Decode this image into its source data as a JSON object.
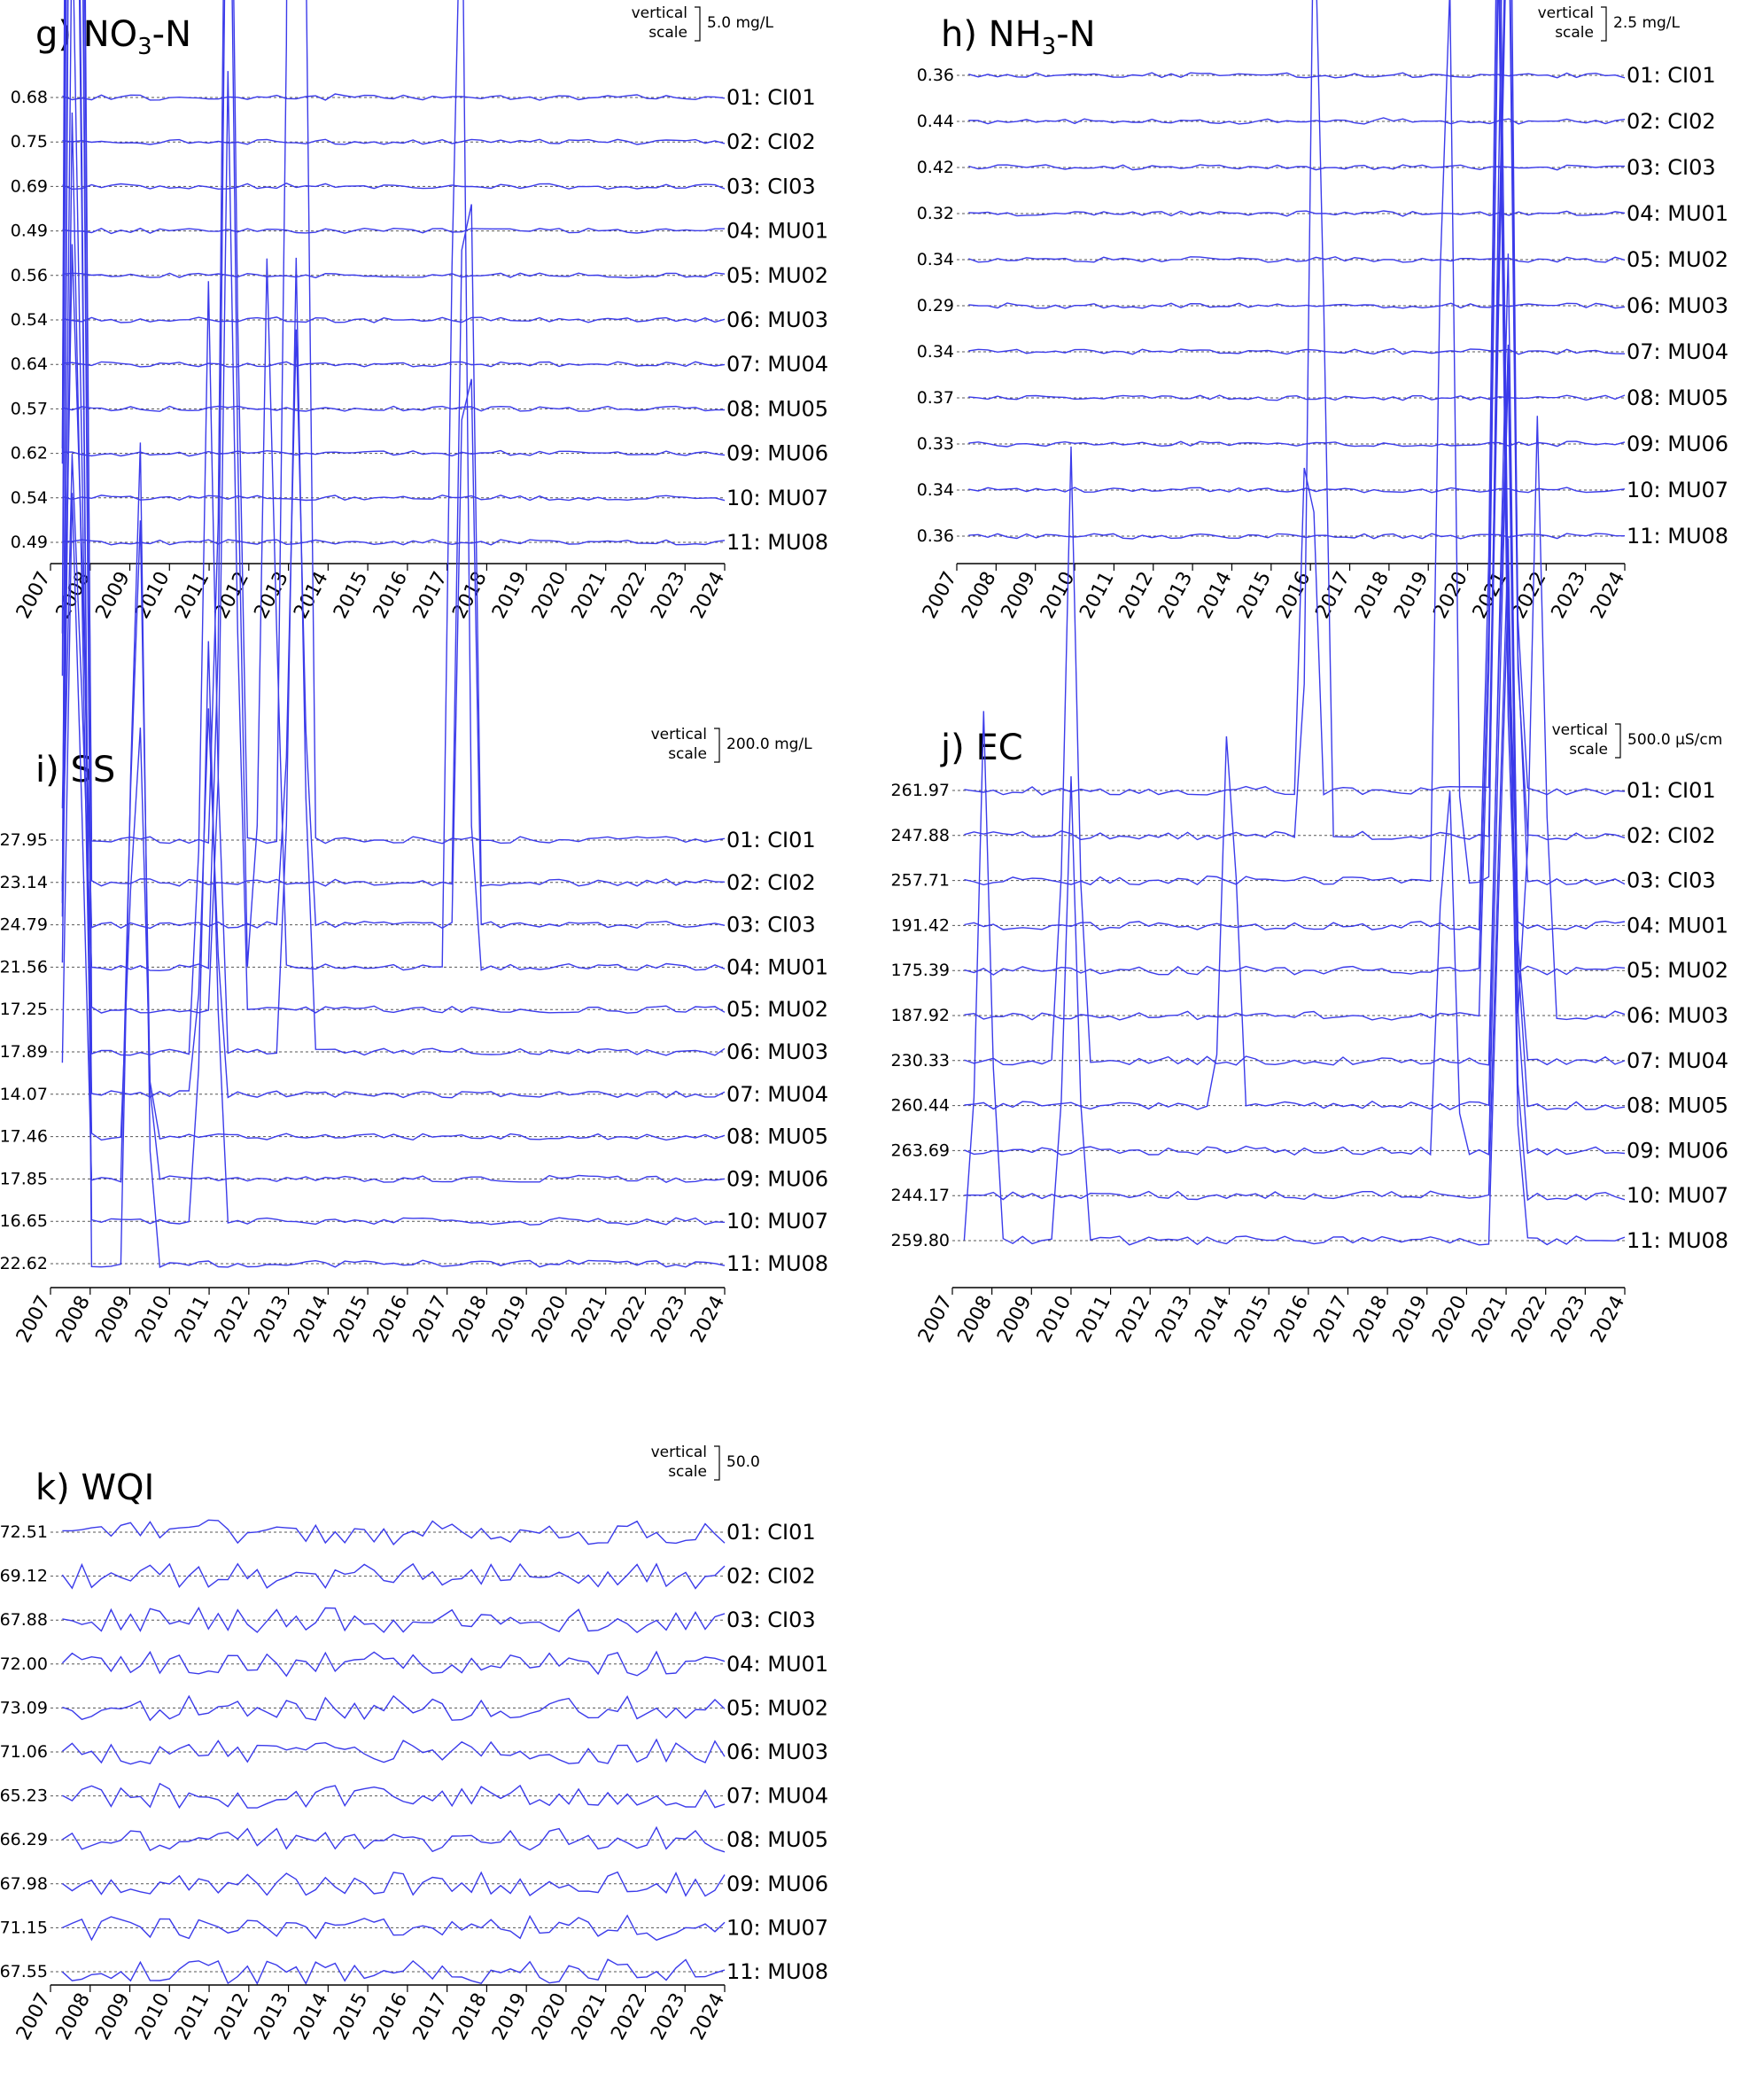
{
  "series_color": "#3b3bea",
  "baseline_color": "#555555",
  "chart_data": [
    {
      "type": "line",
      "panel": "g",
      "title": {
        "prefix": "g)",
        "main": "NO",
        "sub": "3",
        "suffix": "-N"
      },
      "scale_label": "vertical\nscale",
      "scale_value": "5.0",
      "scale_unit": "mg/L",
      "x_ticks": [
        "2007",
        "2008",
        "2009",
        "2010",
        "2011",
        "2012",
        "2013",
        "2014",
        "2015",
        "2016",
        "2017",
        "2018",
        "2019",
        "2020",
        "2021",
        "2022",
        "2023",
        "2024"
      ],
      "xlim": [
        2007,
        2024
      ],
      "series": [
        {
          "name": "01: CI01",
          "mean": "0.68",
          "spikes": [
            [
              2013.2,
              0.4
            ],
            [
              2014.3,
              2.0
            ],
            [
              2015.5,
              0.2
            ]
          ]
        },
        {
          "name": "02: CI02",
          "mean": "0.75",
          "spikes": [
            [
              2013.0,
              1.9
            ],
            [
              2013.6,
              0.3
            ],
            [
              2016.0,
              0.3
            ]
          ]
        },
        {
          "name": "03: CI03",
          "mean": "0.69",
          "spikes": [
            [
              2013.0,
              1.5
            ],
            [
              2013.8,
              0.4
            ],
            [
              2017.5,
              0.3
            ]
          ]
        },
        {
          "name": "04: MU01",
          "mean": "0.49",
          "spikes": [
            [
              2012.8,
              0.5
            ],
            [
              2015.8,
              0.2
            ]
          ]
        },
        {
          "name": "05: MU02",
          "mean": "0.56",
          "spikes": [
            [
              2009.0,
              0.3
            ],
            [
              2012.8,
              0.4
            ],
            [
              2015.5,
              0.3
            ]
          ]
        },
        {
          "name": "06: MU03",
          "mean": "0.54",
          "spikes": [
            [
              2012.8,
              0.5
            ],
            [
              2015.5,
              0.3
            ],
            [
              2016.5,
              0.4
            ]
          ]
        },
        {
          "name": "07: MU04",
          "mean": "0.64",
          "spikes": [
            [
              2012.8,
              0.4
            ],
            [
              2016.3,
              0.4
            ],
            [
              2019.5,
              0.3
            ]
          ]
        },
        {
          "name": "08: MU05",
          "mean": "0.57",
          "spikes": [
            [
              2012.8,
              0.4
            ],
            [
              2015.8,
              0.3
            ],
            [
              2018.0,
              0.3
            ]
          ]
        },
        {
          "name": "09: MU06",
          "mean": "0.62",
          "spikes": [
            [
              2012.8,
              0.4
            ],
            [
              2016.2,
              0.3
            ],
            [
              2018.2,
              0.4
            ]
          ]
        },
        {
          "name": "10: MU07",
          "mean": "0.54",
          "spikes": [
            [
              2013.0,
              0.3
            ],
            [
              2015.7,
              0.3
            ],
            [
              2018.0,
              0.3
            ]
          ]
        },
        {
          "name": "11: MU08",
          "mean": "0.49",
          "spikes": [
            [
              2013.0,
              0.3
            ],
            [
              2016.5,
              0.3
            ]
          ]
        }
      ]
    },
    {
      "type": "line",
      "panel": "h",
      "title": {
        "prefix": "h)",
        "main": "NH",
        "sub": "3",
        "suffix": "-N"
      },
      "scale_label": "vertical\nscale",
      "scale_value": "2.5",
      "scale_unit": "mg/L",
      "x_ticks": [
        "2007",
        "2008",
        "2009",
        "2010",
        "2011",
        "2012",
        "2013",
        "2014",
        "2015",
        "2016",
        "2017",
        "2018",
        "2019",
        "2020",
        "2021",
        "2022",
        "2023",
        "2024"
      ],
      "xlim": [
        2007,
        2024
      ],
      "series": [
        {
          "name": "01: CI01",
          "mean": "0.36",
          "spikes": [
            [
              2013.0,
              0.3
            ],
            [
              2013.6,
              0.4
            ],
            [
              2016.2,
              0.3
            ],
            [
              2017.2,
              0.35
            ],
            [
              2019.0,
              0.3
            ]
          ]
        },
        {
          "name": "02: CI02",
          "mean": "0.44",
          "spikes": [
            [
              2016.0,
              0.2
            ],
            [
              2018.0,
              0.9
            ]
          ]
        },
        {
          "name": "03: CI03",
          "mean": "0.42",
          "spikes": [
            [
              2007.5,
              0.3
            ],
            [
              2013.2,
              0.5
            ],
            [
              2018.0,
              0.5
            ]
          ]
        },
        {
          "name": "04: MU01",
          "mean": "0.32",
          "spikes": [
            [
              2013.5,
              0.3
            ],
            [
              2014.0,
              0.5
            ],
            [
              2016.5,
              0.2
            ]
          ]
        },
        {
          "name": "05: MU02",
          "mean": "0.34",
          "spikes": [
            [
              2013.2,
              0.4
            ],
            [
              2014.0,
              0.5
            ],
            [
              2016.5,
              0.3
            ]
          ]
        },
        {
          "name": "06: MU03",
          "mean": "0.29",
          "spikes": [
            [
              2013.0,
              0.3
            ],
            [
              2017.3,
              0.4
            ],
            [
              2018.0,
              0.2
            ]
          ]
        },
        {
          "name": "07: MU04",
          "mean": "0.34",
          "spikes": [
            [
              2012.8,
              0.8
            ],
            [
              2013.5,
              0.3
            ],
            [
              2018.0,
              0.4
            ]
          ]
        },
        {
          "name": "08: MU05",
          "mean": "0.37",
          "spikes": [
            [
              2007.6,
              0.3
            ],
            [
              2013.2,
              0.3
            ],
            [
              2017.3,
              0.4
            ]
          ]
        },
        {
          "name": "09: MU06",
          "mean": "0.33",
          "spikes": [
            [
              2013.2,
              0.3
            ],
            [
              2016.3,
              0.3
            ]
          ]
        },
        {
          "name": "10: MU07",
          "mean": "0.34",
          "spikes": [
            [
              2013.2,
              0.3
            ],
            [
              2016.2,
              0.25
            ],
            [
              2020.5,
              0.2
            ]
          ]
        },
        {
          "name": "11: MU08",
          "mean": "0.36",
          "spikes": [
            [
              2013.4,
              0.25
            ],
            [
              2016.0,
              0.25
            ]
          ]
        }
      ]
    },
    {
      "type": "line",
      "panel": "i",
      "title": {
        "prefix": "i)",
        "main": "SS",
        "sub": "",
        "suffix": ""
      },
      "scale_label": "vertical\nscale",
      "scale_value": "200.0",
      "scale_unit": "mg/L",
      "x_ticks": [
        "2007",
        "2008",
        "2009",
        "2010",
        "2011",
        "2012",
        "2013",
        "2014",
        "2015",
        "2016",
        "2017",
        "2018",
        "2019",
        "2020",
        "2021",
        "2022",
        "2023",
        "2024"
      ],
      "xlim": [
        2007,
        2024
      ],
      "series": [
        {
          "name": "01: CI01",
          "mean": "27.95",
          "spikes": [
            [
              2007.6,
              130
            ],
            [
              2011.5,
              70
            ],
            [
              2013.2,
              140
            ]
          ]
        },
        {
          "name": "02: CI02",
          "mean": "23.14",
          "spikes": [
            [
              2007.6,
              150
            ],
            [
              2017.5,
              50
            ]
          ]
        },
        {
          "name": "03: CI03",
          "mean": "24.79",
          "spikes": [
            [
              2007.6,
              40
            ],
            [
              2013.2,
              30
            ],
            [
              2017.5,
              40
            ]
          ]
        },
        {
          "name": "04: MU01",
          "mean": "21.56",
          "spikes": [
            [
              2007.6,
              30
            ],
            [
              2011.5,
              70
            ],
            [
              2012.5,
              40
            ],
            [
              2017.3,
              70
            ]
          ]
        },
        {
          "name": "05: MU02",
          "mean": "17.25",
          "spikes": [
            [
              2007.6,
              130
            ],
            [
              2011.5,
              50
            ]
          ]
        },
        {
          "name": "06: MU03",
          "mean": "17.89",
          "spikes": [
            [
              2007.6,
              130
            ],
            [
              2011.0,
              40
            ],
            [
              2013.2,
              40
            ]
          ]
        },
        {
          "name": "07: MU04",
          "mean": "14.07",
          "spikes": [
            [
              2007.6,
              70
            ],
            [
              2011.0,
              20
            ]
          ]
        },
        {
          "name": "08: MU05",
          "mean": "17.46",
          "spikes": [
            [
              2007.6,
              60
            ],
            [
              2009.2,
              25
            ]
          ]
        },
        {
          "name": "09: MU06",
          "mean": "17.85",
          "spikes": [
            [
              2007.6,
              40
            ],
            [
              2009.2,
              40
            ]
          ]
        },
        {
          "name": "10: MU07",
          "mean": "16.65",
          "spikes": [
            [
              2007.6,
              110
            ],
            [
              2011.0,
              30
            ]
          ]
        },
        {
          "name": "11: MU08",
          "mean": "22.62",
          "spikes": [
            [
              2007.6,
              120
            ],
            [
              2009.2,
              50
            ]
          ]
        }
      ]
    },
    {
      "type": "line",
      "panel": "j",
      "title": {
        "prefix": "j)",
        "main": "EC",
        "sub": "",
        "suffix": ""
      },
      "scale_label": "vertical\nscale",
      "scale_value": "500.0",
      "scale_unit": "µS/cm",
      "x_ticks": [
        "2007",
        "2008",
        "2009",
        "2010",
        "2011",
        "2012",
        "2013",
        "2014",
        "2015",
        "2016",
        "2017",
        "2018",
        "2019",
        "2020",
        "2021",
        "2022",
        "2023",
        "2024"
      ],
      "xlim": [
        2007,
        2024
      ],
      "series": [
        {
          "name": "01: CI01",
          "mean": "261.97",
          "spikes": [
            [
              2016.0,
              60
            ],
            [
              2021.0,
              150
            ]
          ]
        },
        {
          "name": "02: CI02",
          "mean": "247.88",
          "spikes": [
            [
              2016.2,
              150
            ],
            [
              2021.0,
              150
            ]
          ]
        },
        {
          "name": "03: CI03",
          "mean": "257.71",
          "spikes": [
            [
              2019.5,
              150
            ],
            [
              2021.0,
              200
            ]
          ]
        },
        {
          "name": "04: MU01",
          "mean": "191.42",
          "spikes": [
            [
              2020.8,
              150
            ]
          ]
        },
        {
          "name": "05: MU02",
          "mean": "175.39",
          "spikes": [
            [
              2020.8,
              140
            ]
          ]
        },
        {
          "name": "06: MU03",
          "mean": "187.92",
          "spikes": [
            [
              2020.8,
              140
            ],
            [
              2021.8,
              80
            ]
          ]
        },
        {
          "name": "07: MU04",
          "mean": "230.33",
          "spikes": [
            [
              2010.0,
              80
            ],
            [
              2021.0,
              110
            ]
          ]
        },
        {
          "name": "08: MU05",
          "mean": "260.44",
          "spikes": [
            [
              2014.0,
              60
            ],
            [
              2021.0,
              130
            ]
          ]
        },
        {
          "name": "09: MU06",
          "mean": "263.69",
          "spikes": [
            [
              2019.5,
              60
            ],
            [
              2021.0,
              120
            ]
          ]
        },
        {
          "name": "10: MU07",
          "mean": "244.17",
          "spikes": [
            [
              2021.0,
              100
            ]
          ]
        },
        {
          "name": "11: MU08",
          "mean": "259.80",
          "spikes": [
            [
              2007.8,
              70
            ],
            [
              2010.0,
              60
            ],
            [
              2021.0,
              100
            ]
          ]
        }
      ]
    },
    {
      "type": "line",
      "panel": "k",
      "title": {
        "prefix": "k)",
        "main": "WQI",
        "sub": "",
        "suffix": ""
      },
      "scale_label": "vertical\nscale",
      "scale_value": "50.0",
      "scale_unit": "",
      "x_ticks": [
        "2007",
        "2008",
        "2009",
        "2010",
        "2011",
        "2012",
        "2013",
        "2014",
        "2015",
        "2016",
        "2017",
        "2018",
        "2019",
        "2020",
        "2021",
        "2022",
        "2023",
        "2024"
      ],
      "xlim": [
        2007,
        2024
      ],
      "series": [
        {
          "name": "01: CI01",
          "mean": "72.51",
          "spikes": []
        },
        {
          "name": "02: CI02",
          "mean": "69.12",
          "spikes": []
        },
        {
          "name": "03: CI03",
          "mean": "67.88",
          "spikes": []
        },
        {
          "name": "04: MU01",
          "mean": "72.00",
          "spikes": []
        },
        {
          "name": "05: MU02",
          "mean": "73.09",
          "spikes": []
        },
        {
          "name": "06: MU03",
          "mean": "71.06",
          "spikes": []
        },
        {
          "name": "07: MU04",
          "mean": "65.23",
          "spikes": []
        },
        {
          "name": "08: MU05",
          "mean": "66.29",
          "spikes": []
        },
        {
          "name": "09: MU06",
          "mean": "67.98",
          "spikes": []
        },
        {
          "name": "10: MU07",
          "mean": "71.15",
          "spikes": []
        },
        {
          "name": "11: MU08",
          "mean": "67.55",
          "spikes": []
        }
      ]
    }
  ]
}
